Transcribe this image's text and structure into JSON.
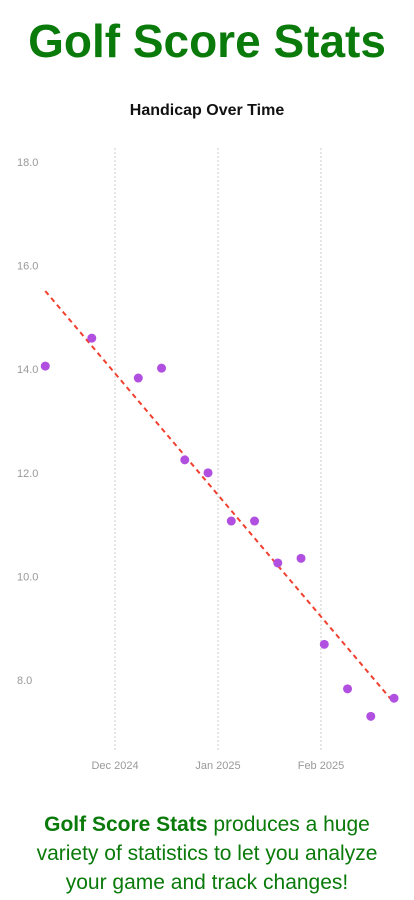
{
  "header": {
    "title": "Golf Score Stats"
  },
  "chart_data": {
    "type": "scatter",
    "title": "Handicap Over Time",
    "x": [
      -21,
      -7,
      7,
      14,
      21,
      28,
      35,
      42,
      49,
      56,
      63,
      70,
      77,
      84
    ],
    "series": [
      {
        "name": "Handicap",
        "color": "#b150e0",
        "values": [
          14.08,
          14.62,
          13.85,
          14.04,
          12.27,
          12.02,
          11.09,
          11.09,
          10.28,
          10.37,
          8.71,
          7.85,
          7.32,
          7.67
        ]
      }
    ],
    "trendline": {
      "x": [
        -21,
        84
      ],
      "values": [
        15.53,
        7.58
      ],
      "color": "#f04030"
    },
    "xlim": [
      -25,
      87
    ],
    "xticks": [
      {
        "value": 0,
        "label": "Dec 2024"
      },
      {
        "value": 31,
        "label": "Jan 2025"
      },
      {
        "value": 62,
        "label": "Feb 2025"
      }
    ],
    "ylim": [
      6.67,
      18.29
    ],
    "yticks": [
      {
        "value": 8,
        "label": "8.0"
      },
      {
        "value": 10,
        "label": "10.0"
      },
      {
        "value": 12,
        "label": "12.0"
      },
      {
        "value": 14,
        "label": "14.0"
      },
      {
        "value": 16,
        "label": "16.0"
      },
      {
        "value": 18,
        "label": "18.0"
      }
    ],
    "grid": "x"
  },
  "footer": {
    "brand": "Golf Score Stats",
    "text": "produces a huge variety of statistics to let you analyze your game and track changes!"
  }
}
